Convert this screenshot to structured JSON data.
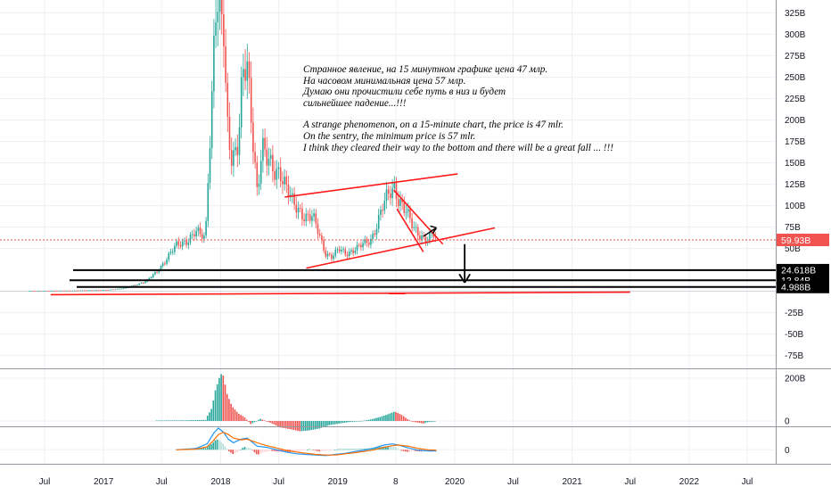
{
  "chart_data": {
    "type": "candlestick",
    "price_axis": {
      "ticks": [
        "325B",
        "300B",
        "275B",
        "250B",
        "225B",
        "200B",
        "175B",
        "150B",
        "125B",
        "100B",
        "75B",
        "50B",
        "-25B",
        "-50B",
        "-75B"
      ],
      "tick_values": [
        325,
        300,
        275,
        250,
        225,
        200,
        175,
        150,
        125,
        100,
        75,
        50,
        -25,
        -50,
        -75
      ],
      "range": [
        -90,
        340
      ]
    },
    "time_axis": {
      "ticks": [
        "Jul",
        "2017",
        "Jul",
        "2018",
        "Jul",
        "2019",
        "8",
        "2020",
        "Jul",
        "2021",
        "Jul",
        "2022",
        "Jul"
      ]
    },
    "price_labels": [
      {
        "text": "59.93B",
        "value": 59.93,
        "color": "#f05350"
      },
      {
        "text": "24.618B",
        "value": 24.618,
        "color": "#000000"
      },
      {
        "text": "12.84B",
        "value": 12.84,
        "color": "#000000"
      },
      {
        "text": "4.988B",
        "value": 4.988,
        "color": "#000000"
      }
    ],
    "price_series": [
      [
        "2016-05",
        0.5
      ],
      [
        "2016-09",
        0.8
      ],
      [
        "2017-01",
        1.5
      ],
      [
        "2017-03",
        4
      ],
      [
        "2017-05",
        12
      ],
      [
        "2017-06",
        22
      ],
      [
        "2017-07",
        38
      ],
      [
        "2017-08",
        52
      ],
      [
        "2017-09",
        60
      ],
      [
        "2017-10",
        68
      ],
      [
        "2017-11",
        62
      ],
      [
        "2017-11-20",
        120
      ],
      [
        "2017-12-05",
        230
      ],
      [
        "2017-12-15",
        340
      ],
      [
        "2018-01-01",
        300
      ],
      [
        "2018-01-08",
        320
      ],
      [
        "2018-01-20",
        200
      ],
      [
        "2018-02-05",
        160
      ],
      [
        "2018-02-25",
        175
      ],
      [
        "2018-03-10",
        245
      ],
      [
        "2018-03-25",
        255
      ],
      [
        "2018-04-10",
        190
      ],
      [
        "2018-04-25",
        120
      ],
      [
        "2018-05-10",
        170
      ],
      [
        "2018-05-25",
        150
      ],
      [
        "2018-06-15",
        140
      ],
      [
        "2018-07-05",
        145
      ],
      [
        "2018-07-25",
        120
      ],
      [
        "2018-08-15",
        100
      ],
      [
        "2018-09-05",
        95
      ],
      [
        "2018-09-25",
        88
      ],
      [
        "2018-10-15",
        85
      ],
      [
        "2018-11-05",
        65
      ],
      [
        "2018-11-25",
        45
      ],
      [
        "2018-12-15",
        40
      ],
      [
        "2019-01-05",
        48
      ],
      [
        "2019-01-25",
        45
      ],
      [
        "2019-02-15",
        48
      ],
      [
        "2019-03-05",
        50
      ],
      [
        "2019-03-25",
        55
      ],
      [
        "2019-04-15",
        62
      ],
      [
        "2019-05-05",
        80
      ],
      [
        "2019-05-25",
        100
      ],
      [
        "2019-06-15",
        118
      ],
      [
        "2019-06-28",
        125
      ],
      [
        "2019-07-10",
        108
      ],
      [
        "2019-07-25",
        96
      ],
      [
        "2019-08-10",
        85
      ],
      [
        "2019-08-25",
        75
      ],
      [
        "2019-09-10",
        70
      ],
      [
        "2019-09-25",
        62
      ],
      [
        "2019-10-10",
        58
      ],
      [
        "2019-10-25",
        67
      ],
      [
        "2019-11-05",
        60
      ]
    ],
    "indicator1": {
      "ticks": [
        "200B",
        "0"
      ],
      "tick_values": [
        200,
        0
      ],
      "range": [
        -25,
        245
      ],
      "histogram": [
        [
          "2017-06",
          2
        ],
        [
          "2017-09",
          3
        ],
        [
          "2017-11",
          5
        ],
        [
          "2017-11-20",
          22
        ],
        [
          "2017-12-05",
          60
        ],
        [
          "2017-12-15",
          140
        ],
        [
          "2018-01-01",
          220
        ],
        [
          "2018-01-10",
          210
        ],
        [
          "2018-01-20",
          130
        ],
        [
          "2018-02-05",
          70
        ],
        [
          "2018-02-25",
          35
        ],
        [
          "2018-03-15",
          20
        ],
        [
          "2018-04-05",
          -15
        ],
        [
          "2018-05-05",
          10
        ],
        [
          "2018-06-05",
          -8
        ],
        [
          "2018-07-05",
          -30
        ],
        [
          "2018-08-05",
          -38
        ],
        [
          "2018-09-05",
          -48
        ],
        [
          "2018-10-05",
          -44
        ],
        [
          "2018-11-05",
          -35
        ],
        [
          "2018-12-05",
          -20
        ],
        [
          "2019-01-05",
          -12
        ],
        [
          "2019-02-05",
          -5
        ],
        [
          "2019-03-05",
          -2
        ],
        [
          "2019-04-05",
          4
        ],
        [
          "2019-05-05",
          15
        ],
        [
          "2019-06-05",
          30
        ],
        [
          "2019-06-28",
          44
        ],
        [
          "2019-07-20",
          28
        ],
        [
          "2019-08-10",
          5
        ],
        [
          "2019-08-25",
          -4
        ],
        [
          "2019-09-10",
          -8
        ],
        [
          "2019-09-25",
          -12
        ],
        [
          "2019-10-10",
          -5
        ],
        [
          "2019-11-05",
          -2
        ]
      ]
    },
    "indicator2": {
      "ticks": [
        "0"
      ],
      "tick_values": [
        0
      ],
      "range": [
        -24,
        40
      ],
      "histogram": [
        [
          "2017-10",
          1
        ],
        [
          "2017-11",
          3
        ],
        [
          "2017-11-20",
          6
        ],
        [
          "2017-12-05",
          10
        ],
        [
          "2017-12-15",
          16
        ],
        [
          "2017-12-25",
          18
        ],
        [
          "2018-01-05",
          12
        ],
        [
          "2018-01-15",
          6
        ],
        [
          "2018-01-25",
          -2
        ],
        [
          "2018-02-10",
          -8
        ],
        [
          "2018-02-25",
          -3
        ],
        [
          "2018-03-15",
          5
        ],
        [
          "2018-04-05",
          2
        ],
        [
          "2018-04-25",
          -9
        ],
        [
          "2018-05-15",
          -4
        ],
        [
          "2018-06-05",
          -2
        ],
        [
          "2018-07-05",
          -3
        ],
        [
          "2018-08-05",
          -4
        ],
        [
          "2018-09-05",
          -2
        ],
        [
          "2018-10-05",
          1
        ],
        [
          "2018-11-05",
          -3
        ],
        [
          "2018-12-05",
          -1
        ],
        [
          "2019-01-05",
          1
        ],
        [
          "2019-02-05",
          1
        ],
        [
          "2019-03-05",
          1
        ],
        [
          "2019-04-05",
          2
        ],
        [
          "2019-05-05",
          4
        ],
        [
          "2019-06-05",
          6
        ],
        [
          "2019-06-28",
          5
        ],
        [
          "2019-07-20",
          -2
        ],
        [
          "2019-08-10",
          -4
        ],
        [
          "2019-08-25",
          -2
        ],
        [
          "2019-09-20",
          -3
        ],
        [
          "2019-10-10",
          -1
        ],
        [
          "2019-11-05",
          0
        ]
      ],
      "macd_line": [
        [
          "2017-08",
          0
        ],
        [
          "2017-10",
          2
        ],
        [
          "2017-11-20",
          10
        ],
        [
          "2017-12-10",
          28
        ],
        [
          "2017-12-25",
          37
        ],
        [
          "2018-01-10",
          30
        ],
        [
          "2018-01-25",
          18
        ],
        [
          "2018-02-10",
          12
        ],
        [
          "2018-03-05",
          18
        ],
        [
          "2018-03-25",
          20
        ],
        [
          "2018-04-25",
          6
        ],
        [
          "2018-05-25",
          4
        ],
        [
          "2018-06-25",
          0
        ],
        [
          "2018-07-25",
          -4
        ],
        [
          "2018-08-25",
          -7
        ],
        [
          "2018-09-25",
          -8
        ],
        [
          "2018-10-25",
          -9
        ],
        [
          "2018-11-25",
          -10
        ],
        [
          "2018-12-25",
          -8
        ],
        [
          "2019-01-25",
          -6
        ],
        [
          "2019-02-25",
          -3
        ],
        [
          "2019-03-25",
          -1
        ],
        [
          "2019-04-25",
          3
        ],
        [
          "2019-05-25",
          8
        ],
        [
          "2019-06-20",
          10
        ],
        [
          "2019-07-10",
          8
        ],
        [
          "2019-08-10",
          3
        ],
        [
          "2019-09-10",
          -1
        ],
        [
          "2019-10-10",
          -2
        ],
        [
          "2019-11-05",
          -2
        ]
      ],
      "signal_line": [
        [
          "2017-08",
          0
        ],
        [
          "2017-10",
          1
        ],
        [
          "2017-11-20",
          5
        ],
        [
          "2017-12-10",
          16
        ],
        [
          "2017-12-25",
          26
        ],
        [
          "2018-01-10",
          30
        ],
        [
          "2018-01-25",
          26
        ],
        [
          "2018-02-10",
          20
        ],
        [
          "2018-03-05",
          17
        ],
        [
          "2018-03-25",
          18
        ],
        [
          "2018-04-25",
          12
        ],
        [
          "2018-05-25",
          7
        ],
        [
          "2018-06-25",
          3
        ],
        [
          "2018-07-25",
          -1
        ],
        [
          "2018-08-25",
          -4
        ],
        [
          "2018-09-25",
          -6
        ],
        [
          "2018-10-25",
          -8
        ],
        [
          "2018-11-25",
          -9
        ],
        [
          "2018-12-25",
          -9
        ],
        [
          "2019-01-25",
          -7
        ],
        [
          "2019-02-25",
          -5
        ],
        [
          "2019-03-25",
          -3
        ],
        [
          "2019-04-25",
          0
        ],
        [
          "2019-05-25",
          4
        ],
        [
          "2019-06-20",
          7
        ],
        [
          "2019-07-10",
          8
        ],
        [
          "2019-08-10",
          6
        ],
        [
          "2019-09-10",
          2
        ],
        [
          "2019-10-10",
          0
        ],
        [
          "2019-11-05",
          -1
        ]
      ]
    },
    "annotations": {
      "lines_ru": [
        "Странное явление, на 15 минутном графике цена 47 млр.",
        "На часовом минимальная цена 57 млр.",
        " Думаю они прочистили себе путь в низ и будет",
        "сильнейшее падение...!!!"
      ],
      "lines_en": [
        "A strange phenomenon, on a 15-minute chart, the price is 47 mlr.",
        "On the sentry, the minimum price is 57 mlr.",
        "I think they cleared their way to the bottom and there will be a great fall ... !!!"
      ]
    },
    "colors": {
      "up": "#26a69a",
      "down": "#ef5350",
      "trendline": "#ff1a1a",
      "macd": "#2196f3",
      "signal": "#ff6d00",
      "last_price": "#f05350"
    }
  }
}
